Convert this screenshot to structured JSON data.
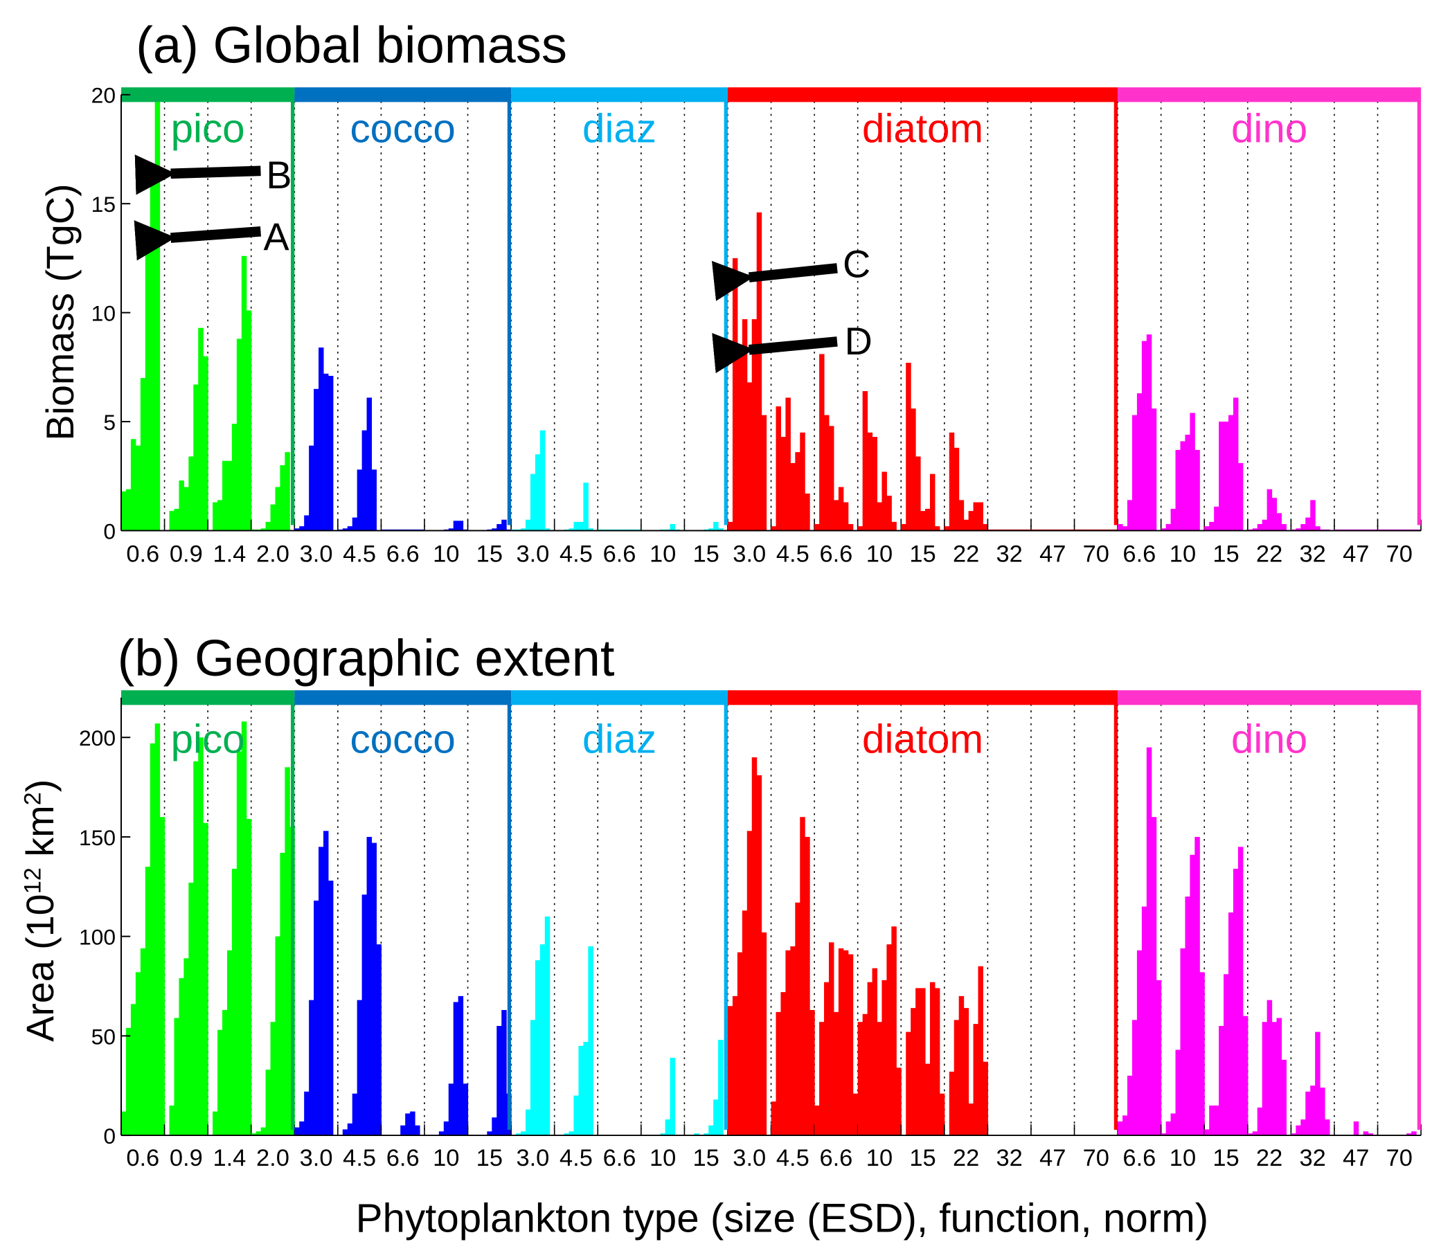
{
  "groups": [
    {
      "name": "pico",
      "header_color": "#00b050",
      "bar_color": "#00ff00",
      "sizes": [
        "0.6",
        "0.9",
        "1.4",
        "2.0"
      ]
    },
    {
      "name": "cocco",
      "header_color": "#0070c0",
      "bar_color": "#0000ff",
      "sizes": [
        "3.0",
        "4.5",
        "6.6",
        "10",
        "15"
      ]
    },
    {
      "name": "diaz",
      "header_color": "#00b0f0",
      "bar_color": "#00ffff",
      "sizes": [
        "3.0",
        "4.5",
        "6.6",
        "10",
        "15"
      ]
    },
    {
      "name": "diatom",
      "header_color": "#ff0000",
      "bar_color": "#ff0000",
      "sizes": [
        "3.0",
        "4.5",
        "6.6",
        "10",
        "15",
        "22",
        "32",
        "47",
        "70"
      ]
    },
    {
      "name": "dino",
      "header_color": "#ff33cc",
      "bar_color": "#ff00ff",
      "sizes": [
        "6.6",
        "10",
        "15",
        "22",
        "32",
        "47",
        "70"
      ]
    }
  ],
  "xlabel": "Phytoplankton type (size (ESD), function, norm)",
  "chart_data": [
    {
      "type": "bar",
      "title": "(a) Global biomass",
      "ylabel": "Biomass (TgC)",
      "ylim": [
        0,
        20
      ],
      "yticks": [
        "0",
        "5",
        "10",
        "15",
        "20"
      ],
      "ytick_values": [
        0,
        5,
        10,
        15,
        20
      ],
      "annotations": [
        {
          "label": "A",
          "target": "pico 0.6",
          "value": 13.8
        },
        {
          "label": "B",
          "target": "pico 0.6",
          "value": 16.3
        },
        {
          "label": "C",
          "target": "diatom 3.0",
          "value": 11.5
        },
        {
          "label": "D",
          "target": "diatom 3.0",
          "value": 8.3
        }
      ],
      "values": [
        [
          [
            1.8,
            1.9,
            4.2,
            3.9,
            7.0,
            13.8,
            15.9,
            20,
            0
          ],
          [
            0,
            0.9,
            1.0,
            2.3,
            2.0,
            3.4,
            6.7,
            9.3,
            8.0
          ],
          [
            0,
            1.3,
            1.4,
            3.2,
            3.2,
            4.9,
            8.8,
            12.6,
            10.1
          ],
          [
            0.05,
            0.05,
            0.1,
            0.4,
            1.2,
            2.0,
            3.0,
            3.6,
            0
          ]
        ],
        [
          [
            0.1,
            0.2,
            0.7,
            3.9,
            6.5,
            8.4,
            7.2,
            7.1,
            0
          ],
          [
            0.05,
            0.1,
            0.2,
            0.6,
            2.8,
            4.6,
            6.1,
            2.8,
            0
          ],
          [
            0.05,
            0.05,
            0.05,
            0.05,
            0.05,
            0.05,
            0.05,
            0.05,
            0.05
          ],
          [
            0,
            0,
            0,
            0,
            0.05,
            0.1,
            0.45,
            0.45,
            0.05
          ],
          [
            0,
            0,
            0,
            0,
            0.05,
            0.1,
            0.3,
            0.5,
            0.05
          ]
        ],
        [
          [
            0.05,
            0.05,
            0.1,
            0.5,
            2.6,
            3.5,
            4.6,
            0.1,
            0
          ],
          [
            0,
            0,
            0.05,
            0.1,
            0.4,
            0.4,
            2.2,
            0.1,
            0
          ],
          [
            0.05,
            0.05,
            0.05,
            0.05,
            0.05,
            0.05,
            0.05,
            0.05,
            0.05
          ],
          [
            0,
            0,
            0,
            0,
            0.05,
            0.05,
            0.3,
            0.05,
            0
          ],
          [
            0,
            0,
            0,
            0,
            0.05,
            0.1,
            0.4,
            0.1,
            0
          ]
        ],
        [
          [
            0.4,
            12.5,
            8.0,
            9.7,
            6.8,
            9.7,
            14.6,
            5.3,
            0
          ],
          [
            0.2,
            5.7,
            4.3,
            6.1,
            3.1,
            3.6,
            4.5,
            1.7,
            0
          ],
          [
            0.3,
            8.1,
            5.3,
            4.8,
            1.4,
            2.0,
            1.3,
            0.3,
            0
          ],
          [
            0.2,
            6.4,
            4.5,
            4.3,
            1.3,
            2.7,
            1.6,
            0.4,
            0
          ],
          [
            0.3,
            7.7,
            5.6,
            3.4,
            0.9,
            1.0,
            2.6,
            0.2,
            0
          ],
          [
            0.2,
            4.5,
            3.8,
            1.4,
            0.5,
            0.9,
            1.3,
            1.3,
            0.3
          ],
          [
            0.05,
            0.05,
            0.05,
            0.05,
            0.05,
            0.05,
            0.05,
            0.05,
            0.05
          ],
          [
            0.05,
            0.05,
            0.05,
            0.05,
            0.05,
            0.05,
            0.05,
            0.05,
            0.05
          ],
          [
            0.05,
            0.05,
            0.05,
            0.05,
            0.05,
            0.05,
            0.05,
            0.05,
            0.05
          ]
        ],
        [
          [
            0.3,
            0.2,
            1.4,
            5.3,
            6.3,
            8.7,
            9.0,
            5.6,
            0
          ],
          [
            0.1,
            0.3,
            1.0,
            3.7,
            4.1,
            4.4,
            5.4,
            3.7,
            0
          ],
          [
            0.2,
            0.4,
            1.1,
            5.0,
            5.0,
            5.3,
            6.1,
            3.1,
            0
          ],
          [
            0.05,
            0.1,
            0.3,
            0.5,
            1.9,
            1.5,
            0.8,
            0.3,
            0
          ],
          [
            0.05,
            0.1,
            0.3,
            0.6,
            1.4,
            0.2,
            0.05,
            0.05,
            0
          ],
          [
            0.05,
            0.05,
            0.05,
            0.05,
            0.05,
            0.05,
            0.05,
            0.05,
            0.05
          ],
          [
            0.05,
            0.05,
            0.05,
            0.05,
            0.05,
            0.05,
            0.05,
            0.05,
            0.05
          ]
        ]
      ]
    },
    {
      "type": "bar",
      "title": "(b) Geographic extent",
      "ylabel": "Area (10",
      "ylabel_sup1": "12",
      "ylabel_mid": " km",
      "ylabel_sup2": "2",
      "ylabel_end": ")",
      "ylim": [
        0,
        220
      ],
      "yticks": [
        "0",
        "50",
        "100",
        "150",
        "200"
      ],
      "ytick_values": [
        0,
        50,
        100,
        150,
        200
      ],
      "values": [
        [
          [
            12,
            54,
            66,
            82,
            94,
            135,
            197,
            207,
            160
          ],
          [
            0,
            15,
            59,
            79,
            89,
            127,
            188,
            200,
            157
          ],
          [
            0,
            12,
            53,
            63,
            93,
            134,
            193,
            208,
            159
          ],
          [
            1,
            2,
            4,
            33,
            57,
            100,
            142,
            185,
            155
          ]
        ],
        [
          [
            4,
            7,
            22,
            68,
            118,
            145,
            153,
            128,
            0
          ],
          [
            0,
            3,
            6,
            21,
            68,
            121,
            150,
            147,
            96
          ],
          [
            0,
            0,
            0,
            0,
            5,
            11,
            12,
            5,
            0
          ],
          [
            0,
            0,
            0,
            2,
            7,
            26,
            67,
            70,
            26
          ],
          [
            0,
            0,
            0,
            0,
            2,
            9,
            55,
            63,
            21
          ]
        ],
        [
          [
            0,
            1,
            2,
            13,
            58,
            88,
            96,
            110,
            0
          ],
          [
            0,
            0,
            1,
            2,
            20,
            45,
            47,
            95,
            0
          ],
          [
            0,
            0,
            0,
            0,
            0,
            0,
            0,
            0,
            0
          ],
          [
            0,
            0,
            0,
            0,
            1,
            8,
            39,
            0,
            0
          ],
          [
            0,
            0,
            1,
            0,
            1,
            5,
            18,
            48,
            0
          ]
        ],
        [
          [
            65,
            70,
            92,
            113,
            153,
            190,
            181,
            102,
            0
          ],
          [
            17,
            62,
            72,
            93,
            95,
            117,
            160,
            150,
            63
          ],
          [
            15,
            57,
            77,
            97,
            62,
            94,
            93,
            91,
            21
          ],
          [
            57,
            61,
            77,
            84,
            57,
            78,
            96,
            105,
            34
          ],
          [
            0,
            52,
            64,
            74,
            74,
            36,
            77,
            74,
            21
          ],
          [
            0,
            32,
            58,
            70,
            64,
            16,
            56,
            85,
            37
          ],
          [
            0,
            0,
            0,
            0,
            0,
            0,
            0,
            0,
            0
          ],
          [
            0,
            0,
            0,
            0,
            0,
            0,
            0,
            0,
            0
          ],
          [
            0,
            0,
            0,
            0,
            0,
            0,
            0,
            0,
            0
          ]
        ],
        [
          [
            7,
            10,
            30,
            58,
            93,
            115,
            195,
            160,
            78
          ],
          [
            1,
            7,
            11,
            43,
            94,
            120,
            141,
            150,
            82
          ],
          [
            3,
            15,
            15,
            55,
            81,
            112,
            134,
            145,
            60
          ],
          [
            1,
            2,
            14,
            57,
            68,
            57,
            59,
            38,
            0
          ],
          [
            1,
            5,
            8,
            22,
            25,
            52,
            24,
            8,
            0
          ],
          [
            0,
            0,
            0,
            0,
            7,
            0,
            2,
            1,
            0
          ],
          [
            0,
            0,
            0,
            0,
            0,
            0,
            1,
            2,
            0
          ]
        ]
      ]
    }
  ]
}
